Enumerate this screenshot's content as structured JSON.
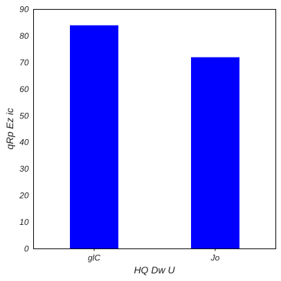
{
  "chart_data": {
    "type": "bar",
    "categories": [
      "glC",
      "Jo"
    ],
    "values": [
      84,
      72
    ],
    "xlabel": "HQ Dw U",
    "ylabel": "qRp Ez ic",
    "ylim": [
      0,
      90
    ],
    "yticks": [
      0,
      10,
      20,
      30,
      40,
      50,
      60,
      70,
      80,
      90
    ],
    "bar_color": "#0000ff",
    "grid": false
  }
}
